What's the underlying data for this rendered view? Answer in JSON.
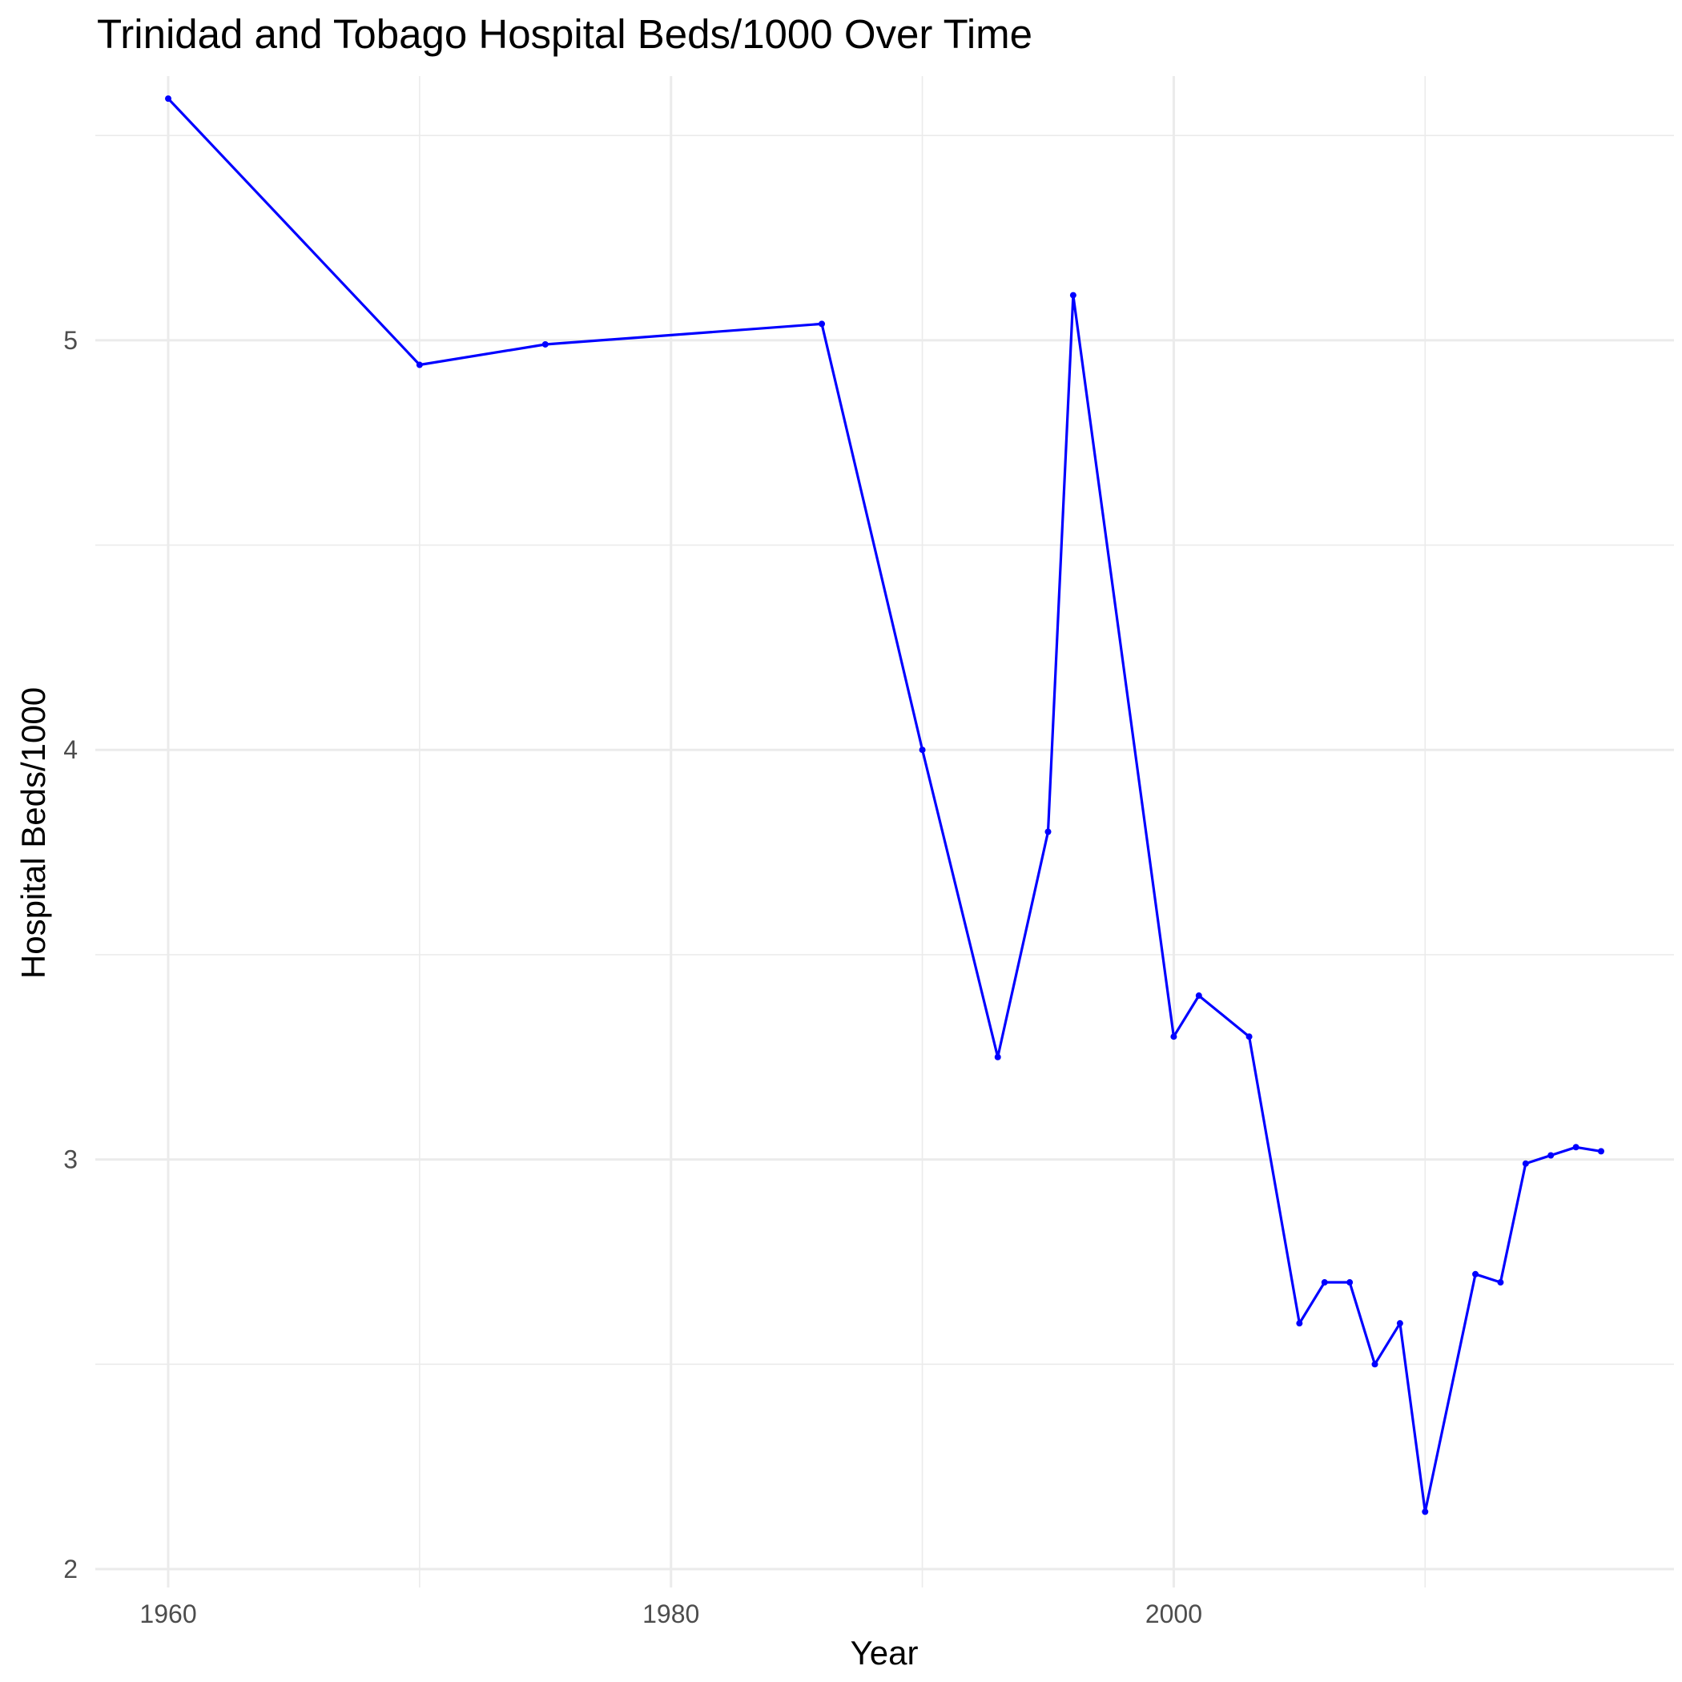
{
  "chart_data": {
    "type": "line",
    "title": "Trinidad and Tobago Hospital Beds/1000 Over Time",
    "xlabel": "Year",
    "ylabel": "Hospital Beds/1000",
    "xlim": [
      1957.1,
      2019.9
    ],
    "ylim": [
      1.955,
      5.645
    ],
    "x_ticks": [
      1960,
      1980,
      2000
    ],
    "y_ticks": [
      2,
      3,
      4,
      5
    ],
    "grid": true,
    "legend": "none",
    "line_color": "#0000ff",
    "series": [
      {
        "x": [
          1960,
          1970,
          1975,
          1986,
          1990,
          1993,
          1995,
          1996,
          2000,
          2001,
          2003,
          2005,
          2006,
          2007,
          2008,
          2009,
          2010,
          2012,
          2013,
          2014,
          2015,
          2016,
          2017
        ],
        "values": [
          5.59,
          4.94,
          4.99,
          5.04,
          4.0,
          3.25,
          3.8,
          5.11,
          3.3,
          3.4,
          3.3,
          2.6,
          2.7,
          2.7,
          2.5,
          2.6,
          2.14,
          2.72,
          2.7,
          2.99,
          3.01,
          3.03,
          3.02
        ]
      }
    ]
  }
}
